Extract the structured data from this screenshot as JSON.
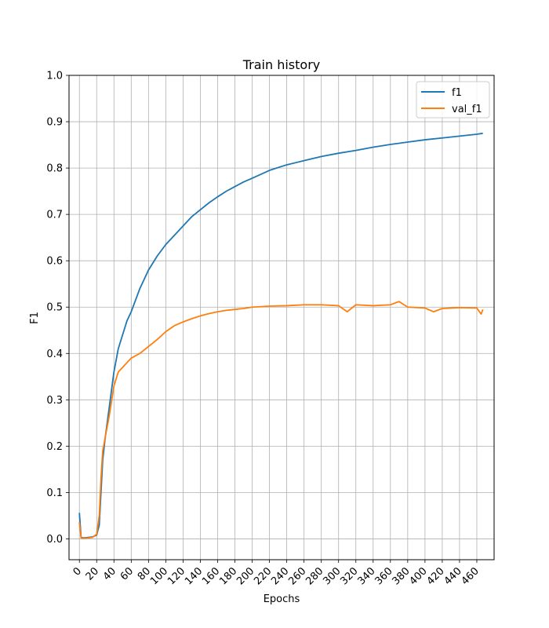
{
  "chart_data": {
    "type": "line",
    "title": "Train history",
    "xlabel": "Epochs",
    "ylabel": "F1",
    "xlim": [
      -12,
      480
    ],
    "ylim": [
      -0.045,
      1.0
    ],
    "xticks": [
      0,
      20,
      40,
      60,
      80,
      100,
      120,
      140,
      160,
      180,
      200,
      220,
      240,
      260,
      280,
      300,
      320,
      340,
      360,
      380,
      400,
      420,
      440,
      460
    ],
    "yticks": [
      0.0,
      0.1,
      0.2,
      0.3,
      0.4,
      0.5,
      0.6,
      0.7,
      0.8,
      0.9,
      1.0
    ],
    "ytick_labels": [
      "0.0",
      "0.1",
      "0.2",
      "0.3",
      "0.4",
      "0.5",
      "0.6",
      "0.7",
      "0.8",
      "0.9",
      "1.0"
    ],
    "grid": true,
    "legend_position": "top-right",
    "series": [
      {
        "name": "f1",
        "color": "#1f77b4",
        "x": [
          0,
          2,
          5,
          10,
          15,
          20,
          23,
          25,
          27,
          30,
          35,
          40,
          45,
          50,
          55,
          60,
          70,
          80,
          90,
          100,
          110,
          120,
          130,
          140,
          150,
          160,
          170,
          180,
          190,
          200,
          220,
          240,
          260,
          280,
          300,
          320,
          340,
          360,
          380,
          400,
          420,
          440,
          460,
          467
        ],
        "y": [
          0.056,
          0.003,
          0.002,
          0.003,
          0.004,
          0.008,
          0.03,
          0.1,
          0.17,
          0.22,
          0.29,
          0.36,
          0.41,
          0.44,
          0.47,
          0.49,
          0.54,
          0.58,
          0.61,
          0.635,
          0.655,
          0.675,
          0.695,
          0.71,
          0.725,
          0.738,
          0.75,
          0.76,
          0.77,
          0.778,
          0.795,
          0.807,
          0.816,
          0.825,
          0.832,
          0.838,
          0.845,
          0.851,
          0.856,
          0.861,
          0.865,
          0.869,
          0.873,
          0.875
        ]
      },
      {
        "name": "val_f1",
        "color": "#ff7f0e",
        "x": [
          0,
          2,
          5,
          10,
          15,
          20,
          23,
          25,
          27,
          30,
          35,
          40,
          45,
          50,
          55,
          60,
          70,
          80,
          90,
          100,
          110,
          120,
          130,
          140,
          150,
          160,
          170,
          180,
          190,
          200,
          220,
          240,
          260,
          280,
          300,
          310,
          320,
          340,
          360,
          370,
          380,
          400,
          410,
          420,
          440,
          460,
          465,
          467
        ],
        "y": [
          0.036,
          0.002,
          0.001,
          0.002,
          0.003,
          0.01,
          0.05,
          0.13,
          0.19,
          0.22,
          0.27,
          0.33,
          0.36,
          0.37,
          0.38,
          0.39,
          0.4,
          0.415,
          0.43,
          0.447,
          0.46,
          0.468,
          0.475,
          0.481,
          0.486,
          0.49,
          0.493,
          0.495,
          0.497,
          0.5,
          0.502,
          0.503,
          0.505,
          0.505,
          0.503,
          0.49,
          0.505,
          0.503,
          0.505,
          0.512,
          0.5,
          0.498,
          0.49,
          0.497,
          0.499,
          0.498,
          0.485,
          0.495
        ]
      }
    ]
  }
}
